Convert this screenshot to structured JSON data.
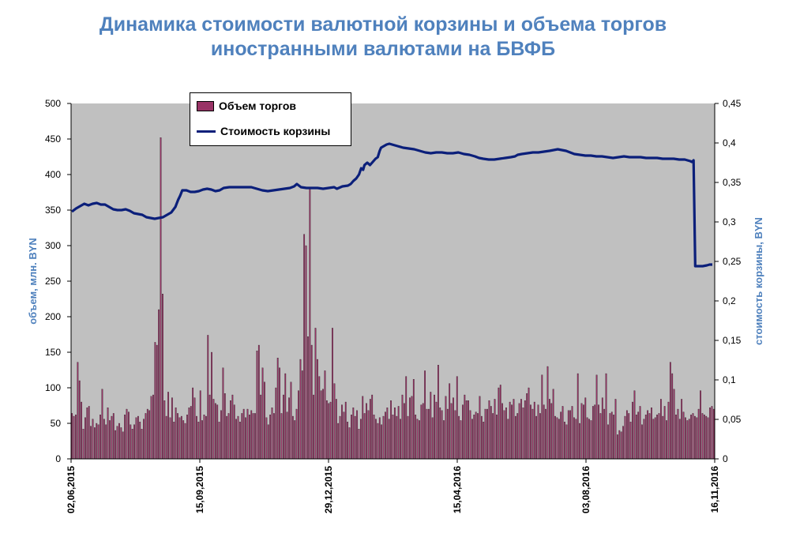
{
  "title_line1": "Динамика стоимости валютной корзины и объема торгов",
  "title_line2": "иностранными валютами на БВФБ",
  "colors": {
    "plot_bg": "#c0c0c0",
    "bar": "#993366",
    "line": "#0b1f7a",
    "title": "#4f81bd"
  },
  "chart_data": {
    "type": "bar+line",
    "ylabel_left": "объем, млн. BYN",
    "ylabel_right": "стоимость корзины, BYN",
    "y_left_range": [
      0,
      500
    ],
    "y_right_range": [
      0,
      0.45
    ],
    "y_left_ticks": [
      "0",
      "50",
      "100",
      "150",
      "200",
      "250",
      "300",
      "350",
      "400",
      "450",
      "500"
    ],
    "y_right_ticks": [
      "0",
      "0,05",
      "0,1",
      "0,15",
      "0,2",
      "0,25",
      "0,3",
      "0,35",
      "0,4",
      "0,45"
    ],
    "x_tick_labels": [
      "02,06,2015",
      "15,09,2015",
      "29,12,2015",
      "15,04,2016",
      "03,08,2016",
      "16,11,2016"
    ],
    "grid": false,
    "legend_position": "top-left",
    "series": [
      {
        "name": "Объем торгов",
        "kind": "bar",
        "axis": "left",
        "values": [
          64,
          60,
          62,
          136,
          110,
          80,
          42,
          58,
          72,
          74,
          46,
          56,
          44,
          50,
          48,
          62,
          98,
          56,
          48,
          72,
          54,
          60,
          64,
          40,
          46,
          50,
          44,
          38,
          62,
          70,
          66,
          48,
          42,
          48,
          58,
          60,
          52,
          42,
          56,
          64,
          70,
          68,
          88,
          90,
          164,
          160,
          210,
          452,
          232,
          82,
          60,
          94,
          58,
          86,
          52,
          72,
          64,
          58,
          60,
          54,
          50,
          62,
          72,
          74,
          100,
          86,
          60,
          52,
          96,
          54,
          62,
          60,
          174,
          90,
          150,
          84,
          78,
          76,
          52,
          68,
          128,
          92,
          60,
          64,
          82,
          90,
          76,
          56,
          60,
          52,
          64,
          70,
          58,
          70,
          62,
          68,
          64,
          64,
          152,
          160,
          90,
          128,
          108,
          58,
          48,
          62,
          72,
          64,
          100,
          142,
          128,
          64,
          90,
          120,
          66,
          86,
          108,
          60,
          54,
          70,
          96,
          140,
          124,
          316,
          300,
          172,
          380,
          160,
          90,
          184,
          140,
          116,
          96,
          98,
          124,
          82,
          78,
          80,
          184,
          106,
          84,
          50,
          60,
          76,
          66,
          80,
          52,
          44,
          62,
          72,
          60,
          68,
          42,
          56,
          88,
          64,
          78,
          68,
          84,
          90,
          62,
          56,
          50,
          58,
          48,
          60,
          66,
          72,
          56,
          82,
          62,
          72,
          60,
          74,
          56,
          90,
          78,
          116,
          60,
          86,
          88,
          112,
          62,
          56,
          54,
          76,
          78,
          124,
          70,
          70,
          94,
          58,
          90,
          80,
          132,
          72,
          68,
          54,
          88,
          70,
          106,
          78,
          86,
          68,
          116,
          60,
          54,
          76,
          90,
          82,
          82,
          68,
          56,
          62,
          66,
          64,
          88,
          60,
          52,
          70,
          70,
          82,
          74,
          64,
          84,
          62,
          100,
          104,
          78,
          68,
          72,
          56,
          80,
          76,
          84,
          60,
          64,
          78,
          84,
          72,
          82,
          92,
          100,
          76,
          70,
          80,
          60,
          76,
          64,
          118,
          76,
          70,
          130,
          84,
          78,
          98,
          60,
          58,
          56,
          66,
          74,
          52,
          48,
          68,
          68,
          74,
          58,
          56,
          120,
          50,
          78,
          76,
          86,
          58,
          56,
          54,
          74,
          76,
          118,
          76,
          64,
          86,
          70,
          120,
          48,
          64,
          66,
          62,
          84,
          34,
          40,
          38,
          46,
          60,
          68,
          64,
          52,
          80,
          96,
          62,
          66,
          74,
          48,
          56,
          62,
          68,
          64,
          72,
          56,
          58,
          62,
          64,
          84,
          60,
          74,
          54,
          80,
          136,
          120,
          98,
          62,
          70,
          56,
          84,
          66,
          58,
          54,
          56,
          62,
          64,
          60,
          58,
          70,
          96,
          64,
          62,
          60,
          58,
          72,
          74,
          70
        ]
      },
      {
        "name": "Стоимость корзины",
        "kind": "line",
        "axis": "right",
        "points": [
          [
            0,
            0.313
          ],
          [
            1.5,
            0.317
          ],
          [
            3,
            0.32
          ],
          [
            4.5,
            0.323
          ],
          [
            6,
            0.321
          ],
          [
            7.5,
            0.323
          ],
          [
            9,
            0.324
          ],
          [
            10.5,
            0.322
          ],
          [
            12,
            0.322
          ],
          [
            13.5,
            0.319
          ],
          [
            15,
            0.316
          ],
          [
            16.5,
            0.315
          ],
          [
            18,
            0.315
          ],
          [
            19.5,
            0.316
          ],
          [
            21,
            0.314
          ],
          [
            22.5,
            0.311
          ],
          [
            24,
            0.31
          ],
          [
            25.5,
            0.309
          ],
          [
            27,
            0.306
          ],
          [
            28.5,
            0.305
          ],
          [
            30,
            0.304
          ],
          [
            31.5,
            0.305
          ],
          [
            33,
            0.306
          ],
          [
            34.5,
            0.309
          ],
          [
            36,
            0.312
          ],
          [
            37.5,
            0.319
          ],
          [
            38.5,
            0.328
          ],
          [
            39.2,
            0.333
          ],
          [
            40,
            0.34
          ],
          [
            41.5,
            0.34
          ],
          [
            43,
            0.338
          ],
          [
            44.5,
            0.338
          ],
          [
            46,
            0.339
          ],
          [
            47.5,
            0.341
          ],
          [
            49,
            0.342
          ],
          [
            50.5,
            0.341
          ],
          [
            52,
            0.339
          ],
          [
            53.5,
            0.34
          ],
          [
            55,
            0.343
          ],
          [
            57,
            0.344
          ],
          [
            59,
            0.344
          ],
          [
            61,
            0.344
          ],
          [
            63,
            0.344
          ],
          [
            65,
            0.344
          ],
          [
            67,
            0.342
          ],
          [
            69,
            0.34
          ],
          [
            71,
            0.339
          ],
          [
            73,
            0.34
          ],
          [
            75,
            0.341
          ],
          [
            77,
            0.342
          ],
          [
            79,
            0.343
          ],
          [
            80.5,
            0.345
          ],
          [
            81.5,
            0.348
          ],
          [
            83,
            0.344
          ],
          [
            85,
            0.343
          ],
          [
            87,
            0.343
          ],
          [
            89,
            0.343
          ],
          [
            91,
            0.342
          ],
          [
            93,
            0.343
          ],
          [
            95,
            0.344
          ],
          [
            96,
            0.342
          ],
          [
            98,
            0.345
          ],
          [
            100,
            0.346
          ],
          [
            101,
            0.348
          ],
          [
            102,
            0.352
          ],
          [
            103,
            0.355
          ],
          [
            104,
            0.36
          ],
          [
            104.8,
            0.368
          ],
          [
            105.5,
            0.366
          ],
          [
            106,
            0.372
          ],
          [
            107,
            0.375
          ],
          [
            108,
            0.372
          ],
          [
            109,
            0.376
          ],
          [
            110,
            0.38
          ],
          [
            110.8,
            0.382
          ],
          [
            111.5,
            0.39
          ],
          [
            112,
            0.394
          ],
          [
            113,
            0.396
          ],
          [
            114,
            0.398
          ],
          [
            115,
            0.399
          ],
          [
            116,
            0.398
          ],
          [
            118,
            0.396
          ],
          [
            120,
            0.394
          ],
          [
            122,
            0.393
          ],
          [
            124,
            0.392
          ],
          [
            126,
            0.39
          ],
          [
            128,
            0.388
          ],
          [
            130,
            0.387
          ],
          [
            132,
            0.388
          ],
          [
            134,
            0.388
          ],
          [
            136,
            0.387
          ],
          [
            138,
            0.387
          ],
          [
            140,
            0.388
          ],
          [
            142,
            0.386
          ],
          [
            144,
            0.385
          ],
          [
            146,
            0.383
          ],
          [
            147.5,
            0.381
          ],
          [
            149,
            0.38
          ],
          [
            151,
            0.379
          ],
          [
            153,
            0.379
          ],
          [
            155,
            0.38
          ],
          [
            157,
            0.381
          ],
          [
            159,
            0.382
          ],
          [
            160.5,
            0.383
          ],
          [
            161.5,
            0.385
          ],
          [
            163,
            0.386
          ],
          [
            165,
            0.387
          ],
          [
            167,
            0.388
          ],
          [
            169,
            0.388
          ],
          [
            171,
            0.389
          ],
          [
            173,
            0.39
          ],
          [
            174.5,
            0.391
          ],
          [
            176,
            0.392
          ],
          [
            177.5,
            0.391
          ],
          [
            179,
            0.39
          ],
          [
            180.5,
            0.388
          ],
          [
            182,
            0.386
          ],
          [
            184,
            0.385
          ],
          [
            186,
            0.384
          ],
          [
            188,
            0.384
          ],
          [
            190,
            0.383
          ],
          [
            192,
            0.383
          ],
          [
            194,
            0.382
          ],
          [
            196,
            0.381
          ],
          [
            198,
            0.382
          ],
          [
            200,
            0.383
          ],
          [
            202,
            0.382
          ],
          [
            204,
            0.382
          ],
          [
            206,
            0.382
          ],
          [
            208,
            0.381
          ],
          [
            210,
            0.381
          ],
          [
            212,
            0.381
          ],
          [
            214,
            0.38
          ],
          [
            216,
            0.38
          ],
          [
            218,
            0.38
          ],
          [
            220,
            0.379
          ],
          [
            222,
            0.379
          ],
          [
            224,
            0.377
          ],
          [
            224.6,
            0.376
          ],
          [
            225.2,
            0.378
          ],
          [
            225.8,
            0.244
          ],
          [
            227,
            0.244
          ],
          [
            228.5,
            0.244
          ],
          [
            230,
            0.245
          ],
          [
            231,
            0.246
          ],
          [
            232,
            0.246
          ]
        ]
      }
    ]
  }
}
